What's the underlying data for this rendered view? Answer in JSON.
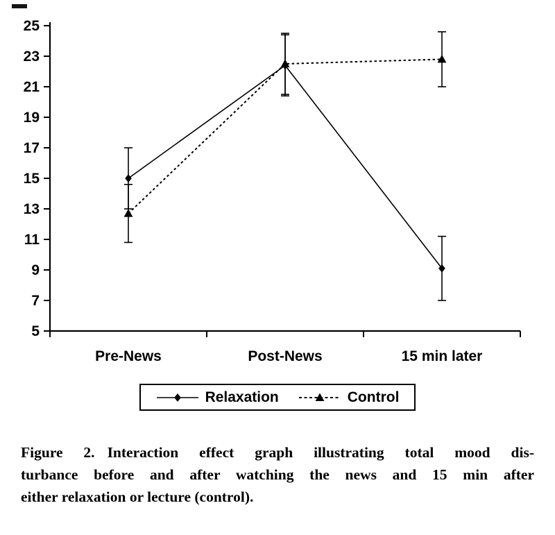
{
  "chart_data": {
    "type": "line",
    "title": "",
    "categories": [
      "Pre-News",
      "Post-News",
      "15 min later"
    ],
    "series": [
      {
        "name": "Relaxation",
        "values": [
          15.0,
          22.4,
          9.1
        ],
        "error_bars": [
          2.0,
          2.0,
          2.1
        ],
        "marker": "diamond",
        "line_style": "solid"
      },
      {
        "name": "Control",
        "values": [
          12.7,
          22.5,
          22.8
        ],
        "error_bars": [
          1.9,
          2.0,
          1.8
        ],
        "marker": "triangle",
        "line_style": "dashed"
      }
    ],
    "xlabel": "",
    "ylabel": "",
    "ylim": [
      5,
      25
    ],
    "yticks": [
      5,
      7,
      9,
      11,
      13,
      15,
      17,
      19,
      21,
      23,
      25
    ],
    "grid": false,
    "legend_position": "bottom-outside-boxed",
    "colors": {
      "line": "#000000",
      "axis": "#000000",
      "background": "#ffffff"
    }
  },
  "caption": {
    "figure_label": "Figure 2.",
    "line1": "Interaction effect graph illustrating total mood dis-",
    "line2": "turbance before and after watching the news and 15 min after",
    "line3": "either relaxation or lecture (control)."
  }
}
